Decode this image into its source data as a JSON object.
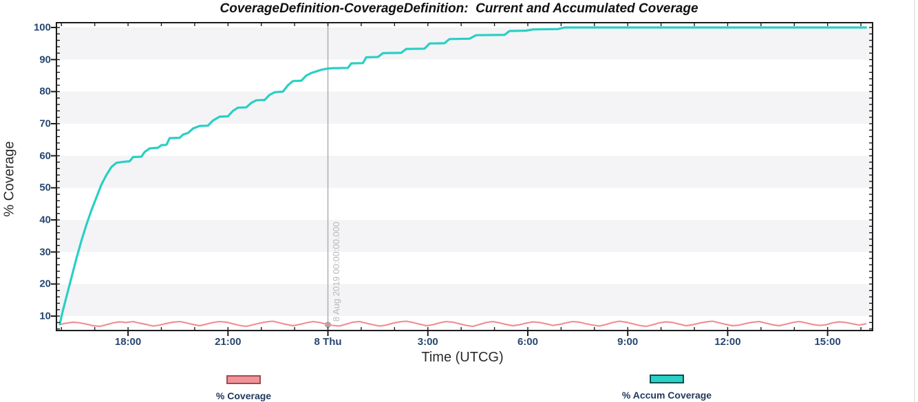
{
  "chart_data": {
    "type": "line",
    "title": "CoverageDefinition-CoverageDefinition:  Current and Accumulated Coverage",
    "xlabel": "Time (UTCG)",
    "ylabel": "% Coverage",
    "x_axis": {
      "unit": "hours relative to 8 Aug 2019 00:00:00 UTCG",
      "range_hours": [
        -8.15,
        16.35
      ],
      "minor_tick_step_hours": 1,
      "major_ticks": [
        {
          "h": -6,
          "label": "18:00"
        },
        {
          "h": -3,
          "label": "21:00"
        },
        {
          "h": 0,
          "label": "8 Thu"
        },
        {
          "h": 3,
          "label": "3:00"
        },
        {
          "h": 6,
          "label": "6:00"
        },
        {
          "h": 9,
          "label": "9:00"
        },
        {
          "h": 12,
          "label": "12:00"
        },
        {
          "h": 15,
          "label": "15:00"
        }
      ]
    },
    "y_axis": {
      "range": [
        5.5,
        101.5
      ],
      "major_ticks": [
        100,
        90,
        80,
        70,
        60,
        50,
        40,
        30,
        20,
        10
      ],
      "minor_tick_step": 2
    },
    "grid": "alternating-bands",
    "band_fill": "#f4f4f6",
    "band_alt": "#ffffff",
    "frame_color": "#1b1b1b",
    "annotation": {
      "text": "8 Aug 2019 00:00:00.000",
      "time_h": 0,
      "line_color": "#a9a9a9",
      "text_color": "#b9b9b9",
      "marker_color": "#9a9a9a",
      "marker_value": 7.3
    },
    "legend_position": "bottom",
    "series": [
      {
        "name": "% Coverage",
        "color": "#ef9096",
        "legend_fill": "#ef9399",
        "legend_border": "#a34a50",
        "x_start": -8.05,
        "x_step": 0.2,
        "values": [
          7.4,
          7.8,
          8.1,
          7.9,
          7.5,
          7.0,
          6.8,
          7.3,
          7.9,
          8.2,
          8.0,
          8.3,
          7.8,
          7.4,
          6.9,
          7.2,
          7.7,
          8.1,
          8.3,
          7.9,
          7.4,
          7.0,
          7.5,
          8.0,
          8.3,
          8.1,
          7.6,
          7.1,
          6.8,
          7.3,
          7.8,
          8.2,
          8.4,
          7.9,
          7.4,
          7.0,
          7.4,
          7.9,
          8.3,
          8.0,
          7.5,
          7.1,
          6.9,
          7.5,
          8.1,
          8.3,
          7.8,
          7.3,
          6.9,
          7.2,
          7.8,
          8.2,
          8.4,
          8.0,
          7.5,
          7.0,
          7.3,
          7.9,
          8.3,
          8.1,
          7.6,
          7.1,
          6.8,
          7.4,
          8.0,
          8.3,
          7.9,
          7.4,
          7.0,
          7.3,
          7.8,
          8.2,
          8.0,
          7.6,
          7.1,
          7.4,
          7.9,
          8.3,
          8.1,
          7.6,
          7.2,
          6.9,
          7.4,
          8.0,
          8.4,
          8.1,
          7.6,
          7.1,
          6.8,
          7.3,
          7.9,
          8.2,
          8.0,
          7.5,
          7.0,
          7.3,
          7.8,
          8.2,
          8.4,
          7.9,
          7.4,
          7.0,
          7.2,
          7.7,
          8.1,
          8.3,
          7.8,
          7.3,
          7.0,
          7.5,
          8.0,
          8.3,
          7.9,
          7.4,
          7.1,
          7.3,
          7.9,
          8.2,
          8.0,
          7.6,
          7.2,
          7.6
        ]
      },
      {
        "name": "% Accum Coverage",
        "color": "#29cfc4",
        "legend_fill": "#2ad0c5",
        "legend_border": "#0b4f4c",
        "points": [
          [
            -8.05,
            7.5
          ],
          [
            -7.95,
            12
          ],
          [
            -7.85,
            16
          ],
          [
            -7.7,
            22
          ],
          [
            -7.55,
            28
          ],
          [
            -7.4,
            33.5
          ],
          [
            -7.25,
            38.5
          ],
          [
            -7.1,
            43
          ],
          [
            -6.95,
            47
          ],
          [
            -6.8,
            51
          ],
          [
            -6.65,
            54
          ],
          [
            -6.5,
            56.5
          ],
          [
            -6.35,
            57.8
          ],
          [
            -6.15,
            58.1
          ],
          [
            -5.95,
            58.3
          ],
          [
            -5.85,
            59.6
          ],
          [
            -5.6,
            59.7
          ],
          [
            -5.5,
            61.2
          ],
          [
            -5.35,
            62.3
          ],
          [
            -5.1,
            62.5
          ],
          [
            -5.0,
            63.3
          ],
          [
            -4.85,
            63.4
          ],
          [
            -4.75,
            65.5
          ],
          [
            -4.45,
            65.6
          ],
          [
            -4.35,
            66.6
          ],
          [
            -4.2,
            67.1
          ],
          [
            -4.05,
            68.5
          ],
          [
            -3.85,
            69.3
          ],
          [
            -3.6,
            69.4
          ],
          [
            -3.45,
            71
          ],
          [
            -3.25,
            72.2
          ],
          [
            -3.0,
            72.3
          ],
          [
            -2.85,
            74
          ],
          [
            -2.7,
            75
          ],
          [
            -2.45,
            75.1
          ],
          [
            -2.3,
            76.5
          ],
          [
            -2.15,
            77.3
          ],
          [
            -1.9,
            77.4
          ],
          [
            -1.75,
            79
          ],
          [
            -1.6,
            79.8
          ],
          [
            -1.35,
            80
          ],
          [
            -1.2,
            82
          ],
          [
            -1.05,
            83.3
          ],
          [
            -0.8,
            83.4
          ],
          [
            -0.65,
            85
          ],
          [
            -0.5,
            85.8
          ],
          [
            -0.35,
            86.3
          ],
          [
            -0.2,
            86.8
          ],
          [
            0.0,
            87.2
          ],
          [
            0.15,
            87.3
          ],
          [
            0.6,
            87.4
          ],
          [
            0.7,
            88.8
          ],
          [
            1.05,
            88.9
          ],
          [
            1.15,
            90.7
          ],
          [
            1.5,
            90.8
          ],
          [
            1.65,
            92
          ],
          [
            2.2,
            92.1
          ],
          [
            2.35,
            93.3
          ],
          [
            2.9,
            93.4
          ],
          [
            3.05,
            95
          ],
          [
            3.5,
            95.1
          ],
          [
            3.65,
            96.4
          ],
          [
            4.25,
            96.5
          ],
          [
            4.45,
            97.6
          ],
          [
            5.3,
            97.7
          ],
          [
            5.45,
            98.9
          ],
          [
            5.95,
            99
          ],
          [
            6.15,
            99.4
          ],
          [
            6.9,
            99.5
          ],
          [
            7.1,
            100
          ],
          [
            16.15,
            100
          ]
        ]
      }
    ]
  }
}
